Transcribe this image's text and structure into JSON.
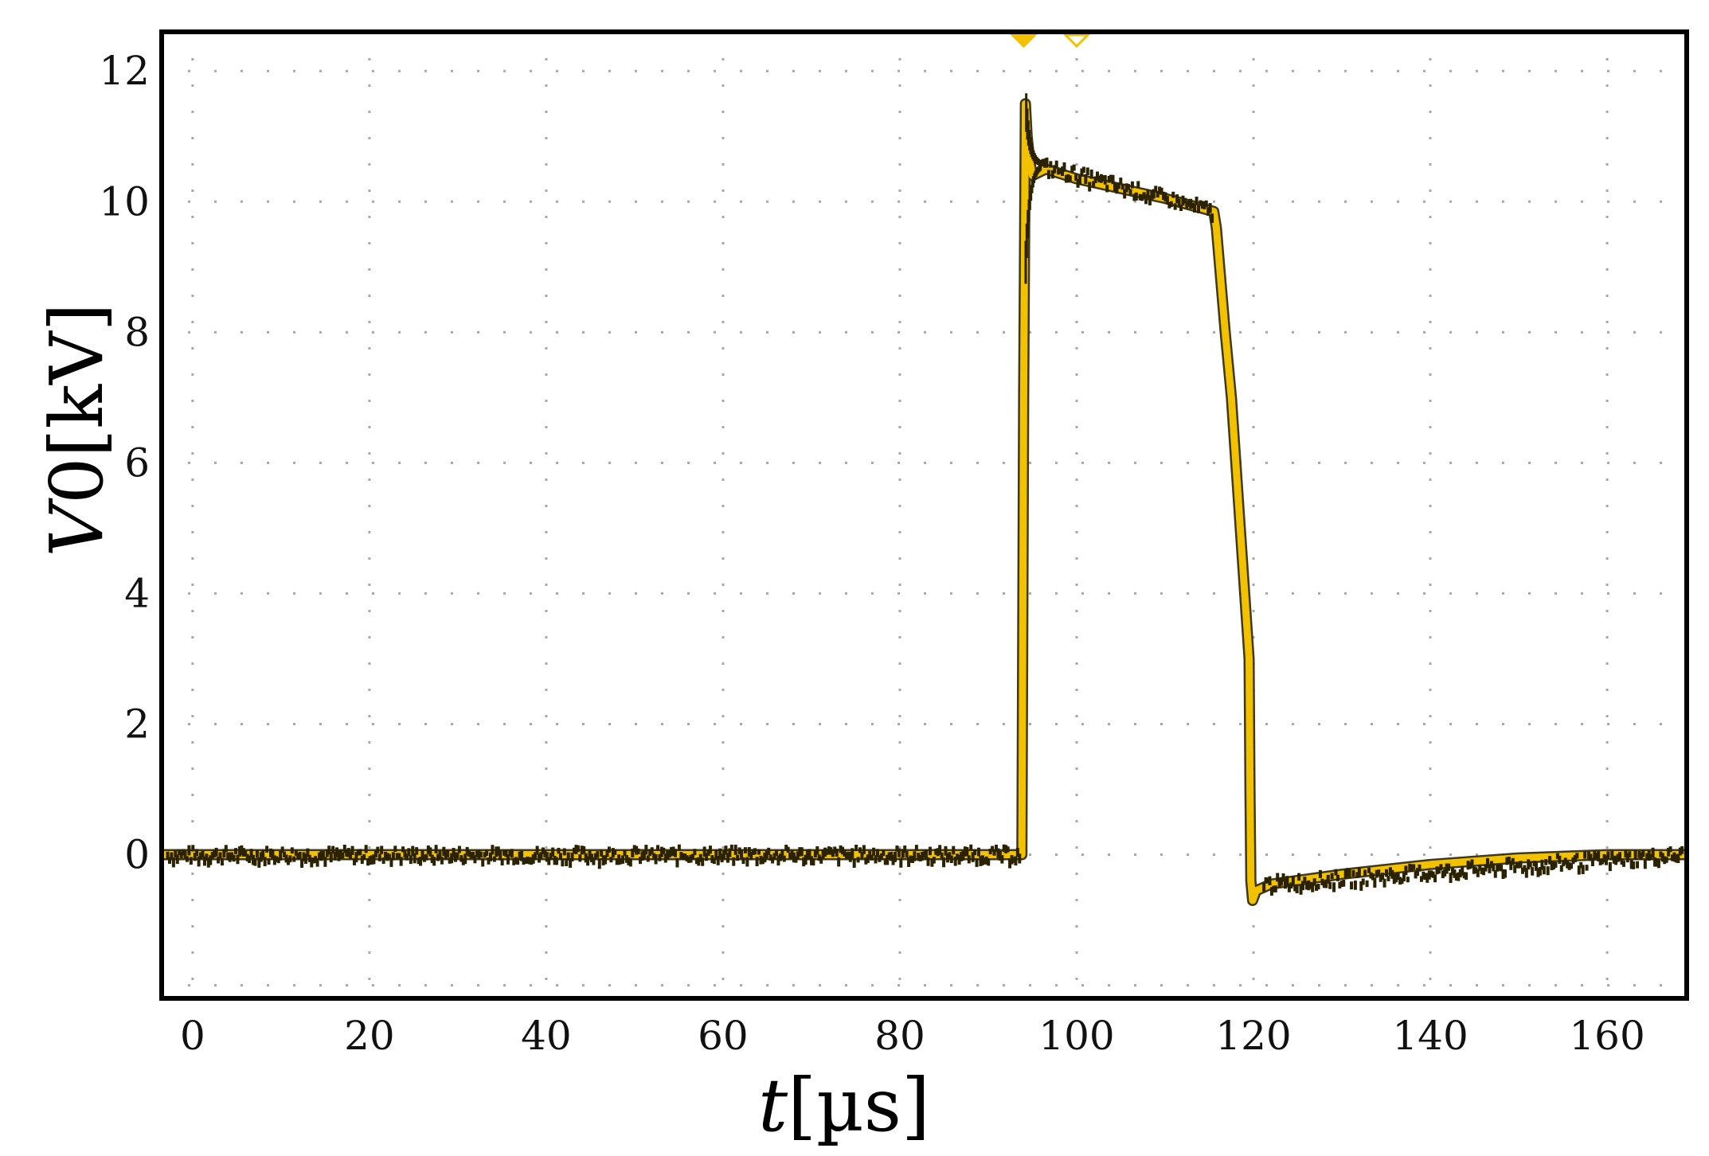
{
  "chart_data": {
    "type": "line",
    "title": "",
    "xlabel": {
      "var": "t",
      "unit": "[µs]"
    },
    "ylabel": {
      "var": "V",
      "sub": "0",
      "unit": "[kV]"
    },
    "xlim": [
      -3.5,
      169
    ],
    "ylim": [
      -2.2,
      12.6
    ],
    "x_ticks": [
      0,
      20,
      40,
      60,
      80,
      100,
      120,
      140,
      160
    ],
    "y_ticks": [
      0,
      2,
      4,
      6,
      8,
      10,
      12
    ],
    "x_gridlines": [
      0,
      20,
      40,
      60,
      80,
      100,
      120,
      140,
      160
    ],
    "y_gridlines": [
      -2,
      0,
      2,
      4,
      6,
      8,
      10,
      12
    ],
    "grid": "dotted",
    "trace_color": "#f2c200",
    "noise_color": "#2a2200",
    "trigger_markers": [
      {
        "x": 94,
        "style": "filled",
        "color": "#f2c200"
      },
      {
        "x": 100,
        "style": "outline",
        "color": "#f2c200"
      }
    ],
    "series": [
      {
        "values": [
          [
            -3.5,
            0.0
          ],
          [
            20,
            0.0
          ],
          [
            40,
            0.0
          ],
          [
            60,
            0.0
          ],
          [
            80,
            0.0
          ],
          [
            93.8,
            0.0
          ],
          [
            94.0,
            7.0
          ],
          [
            94.2,
            11.5
          ],
          [
            94.4,
            11.0
          ],
          [
            94.7,
            10.6
          ],
          [
            95.0,
            10.4
          ],
          [
            96.5,
            10.5
          ],
          [
            100,
            10.35
          ],
          [
            105,
            10.2
          ],
          [
            110,
            10.05
          ],
          [
            115.5,
            9.85
          ],
          [
            115.8,
            9.6
          ],
          [
            116.8,
            8.0
          ],
          [
            117.5,
            7.0
          ],
          [
            118.5,
            5.0
          ],
          [
            119.5,
            3.0
          ],
          [
            119.6,
            1.0
          ],
          [
            119.7,
            -0.4
          ],
          [
            119.9,
            -0.7
          ],
          [
            120.3,
            -0.55
          ],
          [
            122,
            -0.45
          ],
          [
            130,
            -0.3
          ],
          [
            140,
            -0.15
          ],
          [
            150,
            -0.05
          ],
          [
            160,
            0.0
          ],
          [
            169,
            0.0
          ]
        ]
      }
    ]
  }
}
